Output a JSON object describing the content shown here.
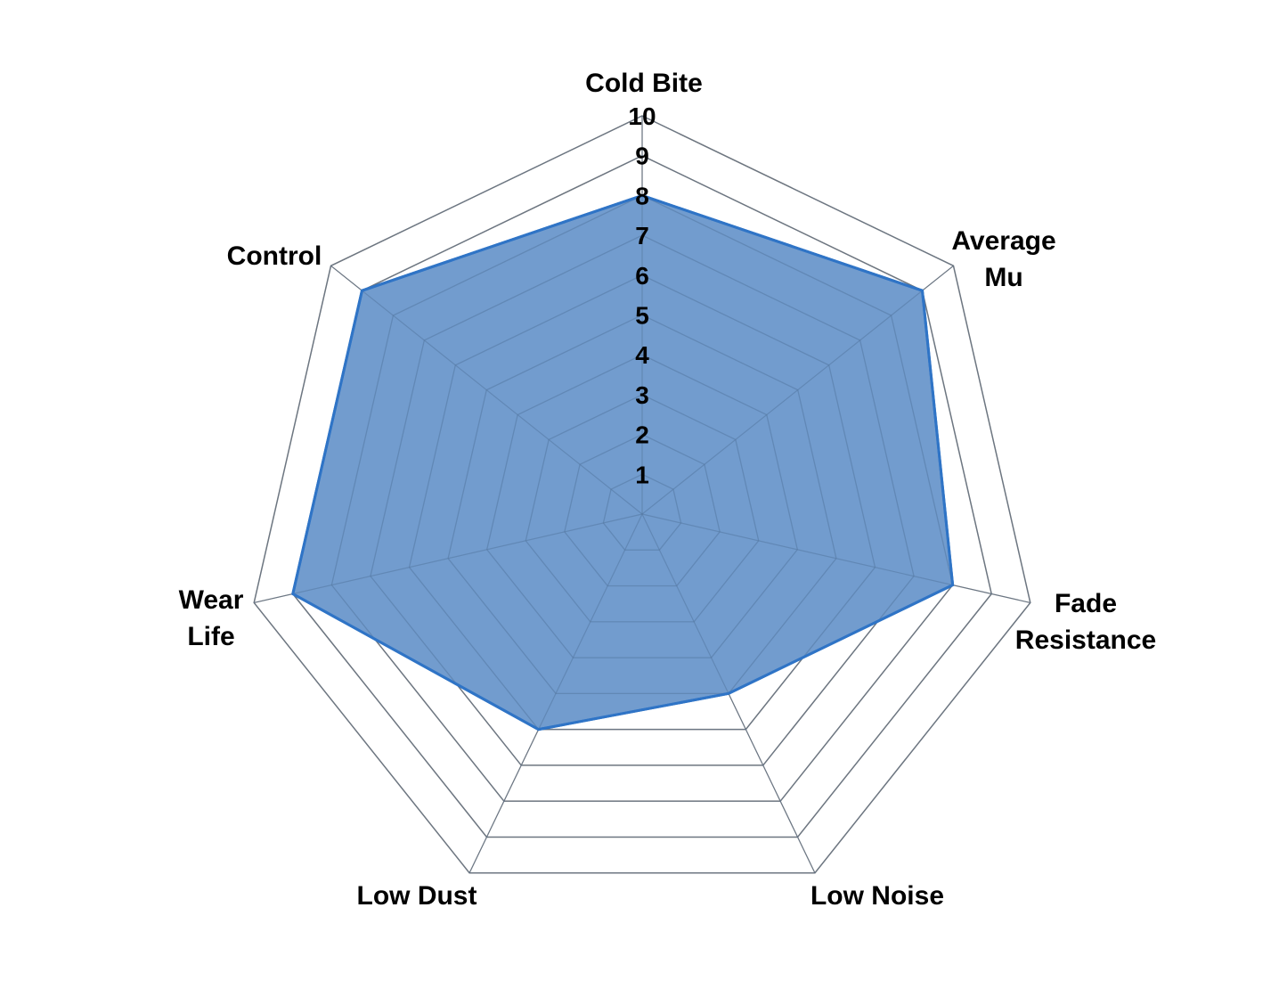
{
  "chart_data": {
    "type": "radar",
    "categories": [
      "Cold Bite",
      "Average Mu",
      "Fade Resistance",
      "Low Noise",
      "Low Dust",
      "Wear Life",
      "Control"
    ],
    "category_lines": [
      [
        "Cold Bite"
      ],
      [
        "Average",
        "Mu"
      ],
      [
        "Fade",
        "Resistance"
      ],
      [
        "Low Noise"
      ],
      [
        "Low Dust"
      ],
      [
        "Wear",
        "Life"
      ],
      [
        "Control"
      ]
    ],
    "values": [
      8,
      9,
      8,
      5,
      6,
      9,
      9
    ],
    "rlim": [
      0,
      10
    ],
    "ticks": [
      "1",
      "2",
      "3",
      "4",
      "5",
      "6",
      "7",
      "8",
      "9",
      "10"
    ],
    "grid": true,
    "colors": {
      "fill": "#6a97cb",
      "stroke": "#2f74c6",
      "grid": "#7a7a7a"
    }
  }
}
